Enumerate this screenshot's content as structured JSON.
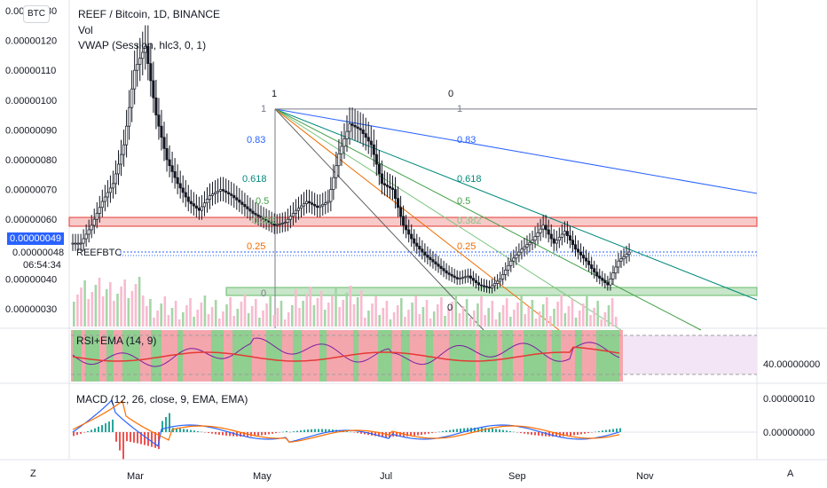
{
  "header": {
    "symbol_line": "REEF / Bitcoin, 1D, BINANCE",
    "vol_label": "Vol",
    "vwap_label": "VWAP (Session, hlc3, 0, 1)",
    "currency_badge": "BTC",
    "rsi_label": "RSI+EMA (14, 9)",
    "macd_label": "MACD (12, 26, close, 9, EMA, EMA)"
  },
  "price_tag": {
    "value": "0.00000049",
    "symbol": "REEFBTC",
    "value2": "0.00000048",
    "countdown": "06:54:34"
  },
  "left_axis": [
    "0.00000130",
    "0.00000120",
    "0.00000110",
    "0.00000100",
    "0.00000090",
    "0.00000080",
    "0.00000070",
    "0.00000060",
    "0.00000040",
    "0.00000030"
  ],
  "right_axis": {
    "rsi_value": "40.00000000",
    "macd_top": "0.00000010",
    "macd_zero": "0.00000000"
  },
  "time_axis": [
    "Mar",
    "May",
    "Jul",
    "Sep",
    "Nov"
  ],
  "corner_left": "Z",
  "corner_right": "A",
  "fib_labels": {
    "top_left": "1",
    "top_right": "0",
    "fan_right": [
      "1",
      "0.83",
      "0.618",
      "0.5",
      "0.382",
      "0.25"
    ],
    "fan_left": [
      "1",
      "0.83",
      "0.618",
      "0.5",
      "0.382",
      "0.25",
      "0"
    ],
    "bottom_zero": "0"
  },
  "colors": {
    "accent": "#2962ff",
    "resistance": "#e57373",
    "support": "#81c784",
    "candle": "#131722"
  },
  "chart_data": {
    "type": "candlestick",
    "title": "REEF / Bitcoin, 1D, BINANCE",
    "x_ticks": [
      "Mar",
      "May",
      "Jul",
      "Sep",
      "Nov"
    ],
    "ylim": [
      2.5e-07,
      1.31e-06
    ],
    "close_series": [
      5.2e-07,
      5.8e-07,
      6.6e-07,
      7.2e-07,
      8.5e-07,
      1.1e-06,
      1.18e-06,
      9.5e-07,
      8e-07,
      7.2e-07,
      6.6e-07,
      6.3e-07,
      6.8e-07,
      7e-07,
      6.8e-07,
      6.5e-07,
      6.2e-07,
      6e-07,
      5.8e-07,
      5.9e-07,
      6.3e-07,
      6.6e-07,
      6.4e-07,
      6.6e-07,
      8.2e-07,
      9.2e-07,
      9e-07,
      8.5e-07,
      7.2e-07,
      7e-07,
      5.8e-07,
      5.2e-07,
      4.8e-07,
      4.5e-07,
      4.2e-07,
      4e-07,
      4.1e-07,
      3.8e-07,
      3.7e-07,
      4e-07,
      4.6e-07,
      5e-07,
      5.3e-07,
      5.8e-07,
      5.2e-07,
      5.6e-07,
      5e-07,
      4.6e-07,
      4.1e-07,
      3.8e-07,
      4.6e-07,
      4.9e-07
    ],
    "resistance_zone": [
      5.8e-07,
      6e-07
    ],
    "support_zone": [
      3.4e-07,
      3.6e-07
    ],
    "current_price": 4.9e-07
  }
}
